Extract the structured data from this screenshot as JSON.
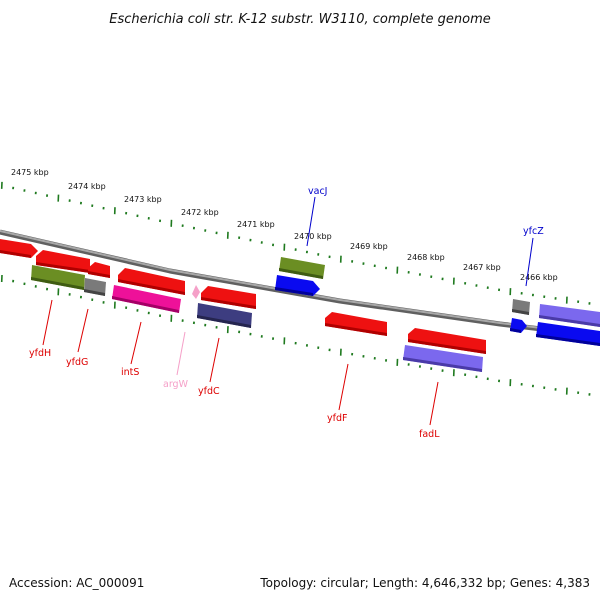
{
  "title": "Escherichia coli str. K-12 substr. W3110, complete genome",
  "footer": {
    "accession": "Accession: AC_000091",
    "summary": "Topology: circular; Length: 4,646,332 bp; Genes: 4,383"
  },
  "ruler": {
    "unit": "kbp",
    "ticks": [
      "2475 kbp",
      "2474 kbp",
      "2473 kbp",
      "2472 kbp",
      "2471 kbp",
      "2470 kbp",
      "2469 kbp",
      "2468 kbp",
      "2467 kbp",
      "2466 kbp"
    ]
  },
  "colors": {
    "backbone": "#8a8a8a",
    "tick": "#1f7a1f",
    "red": "#ee1111",
    "olive": "#6b8e23",
    "gray": "#7a7a7a",
    "magenta": "#ee1199",
    "pink": "#f5a0c8",
    "navy": "#3d3d80",
    "blue": "#0a0af0",
    "lavender": "#7b68ee"
  },
  "labels": {
    "yfdH": "yfdH",
    "yfdG": "yfdG",
    "intS": "intS",
    "argW": "argW",
    "yfdC": "yfdC",
    "vacJ": "vacJ",
    "yfdF": "yfdF",
    "fadL": "fadL",
    "yfcZ": "yfcZ"
  }
}
